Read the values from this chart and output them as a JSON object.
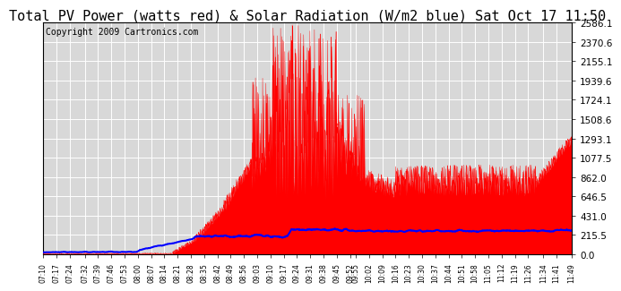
{
  "title": "Total PV Power (watts red) & Solar Radiation (W/m2 blue) Sat Oct 17 11:50",
  "copyright": "Copyright 2009 Cartronics.com",
  "bg_color": "#ffffff",
  "plot_bg_color": "#d8d8d8",
  "grid_color": "#ffffff",
  "ymin": 0.0,
  "ymax": 2586.1,
  "yticks": [
    0.0,
    215.5,
    431.0,
    646.5,
    862.0,
    1077.5,
    1293.1,
    1508.6,
    1724.1,
    1939.6,
    2155.1,
    2370.6,
    2586.1
  ],
  "pv_color": "#ff0000",
  "solar_color": "#0000ff",
  "title_fontsize": 11,
  "copyright_fontsize": 7,
  "xtick_labels": [
    "07:10",
    "07:17",
    "07:24",
    "07:32",
    "07:39",
    "07:46",
    "07:53",
    "08:00",
    "08:07",
    "08:14",
    "08:21",
    "08:28",
    "08:35",
    "08:42",
    "08:49",
    "08:56",
    "09:03",
    "09:10",
    "09:17",
    "09:24",
    "09:31",
    "09:38",
    "09:45",
    "09:52",
    "09:55",
    "10:02",
    "10:09",
    "10:16",
    "10:23",
    "10:30",
    "10:37",
    "10:44",
    "10:51",
    "10:58",
    "11:05",
    "11:12",
    "11:19",
    "11:26",
    "11:34",
    "11:41",
    "11:49"
  ]
}
